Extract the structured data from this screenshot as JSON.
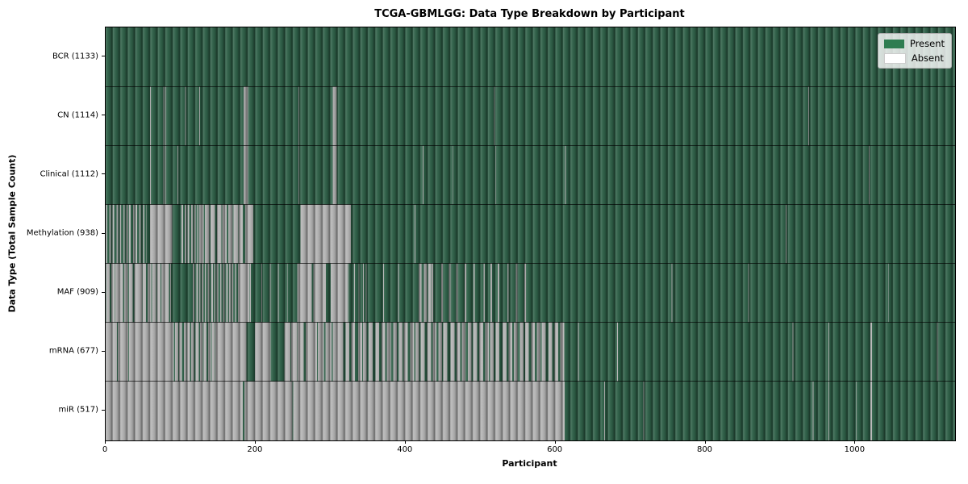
{
  "title": "TCGA-GBMLGG: Data Type Breakdown by Participant",
  "xlabel": "Participant",
  "ylabel": "Data Type (Total Sample Count)",
  "legend": {
    "present_label": "Present",
    "absent_label": "Absent"
  },
  "colors": {
    "present_fill": "#2e5f47",
    "present_legend": "#2e7d51",
    "absent_fill": "#b2b2b2",
    "absent_legend": "#ffffff"
  },
  "chart_data": {
    "type": "heatmap",
    "title": "TCGA-GBMLGG: Data Type Breakdown by Participant",
    "xlabel": "Participant",
    "ylabel": "Data Type (Total Sample Count)",
    "legend_entries": [
      "Present",
      "Absent"
    ],
    "legend_position": "upper right",
    "x_range": [
      0,
      1133
    ],
    "x_ticks": [
      0,
      200,
      400,
      600,
      800,
      1000
    ],
    "rows": [
      {
        "name": "BCR",
        "label": "BCR (1133)",
        "present_count": 1133,
        "segments": []
      },
      {
        "name": "CN",
        "label": "CN (1114)",
        "present_count": 1114,
        "segments": [
          {
            "type": "absent",
            "s": 59,
            "e": 60
          },
          {
            "type": "absent",
            "s": 77,
            "e": 78
          },
          {
            "type": "absent",
            "s": 79,
            "e": 80
          },
          {
            "type": "absent",
            "s": 106,
            "e": 107
          },
          {
            "type": "absent",
            "s": 125,
            "e": 126
          },
          {
            "type": "absent",
            "s": 184,
            "e": 190
          },
          {
            "type": "absent",
            "s": 257,
            "e": 258
          },
          {
            "type": "absent",
            "s": 303,
            "e": 308
          },
          {
            "type": "absent",
            "s": 518,
            "e": 519
          },
          {
            "type": "absent",
            "s": 937,
            "e": 938
          }
        ]
      },
      {
        "name": "Clinical",
        "label": "Clinical (1112)",
        "present_count": 1112,
        "segments": [
          {
            "type": "absent",
            "s": 59,
            "e": 60
          },
          {
            "type": "absent",
            "s": 77,
            "e": 78
          },
          {
            "type": "absent",
            "s": 79,
            "e": 80
          },
          {
            "type": "absent",
            "s": 96,
            "e": 97
          },
          {
            "type": "absent",
            "s": 184,
            "e": 190
          },
          {
            "type": "absent",
            "s": 257,
            "e": 258
          },
          {
            "type": "absent",
            "s": 303,
            "e": 308
          },
          {
            "type": "absent",
            "s": 423,
            "e": 424
          },
          {
            "type": "absent",
            "s": 463,
            "e": 464
          },
          {
            "type": "absent",
            "s": 520,
            "e": 521
          },
          {
            "type": "absent",
            "s": 613,
            "e": 614
          },
          {
            "type": "absent",
            "s": 1018,
            "e": 1019
          }
        ]
      },
      {
        "name": "Methylation",
        "label": "Methylation (938)",
        "present_count": 938,
        "segments": [
          {
            "type": "mixed",
            "s": 0,
            "e": 55,
            "absent_fraction": 0.45,
            "stripe_width": 2
          },
          {
            "type": "absent",
            "s": 59,
            "e": 89
          },
          {
            "type": "mixed",
            "s": 101,
            "e": 124,
            "absent_fraction": 0.5,
            "stripe_width": 2
          },
          {
            "type": "mixed",
            "s": 124,
            "e": 197,
            "absent_fraction": 0.8,
            "stripe_width": 6
          },
          {
            "type": "absent",
            "s": 260,
            "e": 327
          },
          {
            "type": "absent",
            "s": 412,
            "e": 413
          },
          {
            "type": "absent",
            "s": 907,
            "e": 908
          }
        ]
      },
      {
        "name": "MAF",
        "label": "MAF (909)",
        "present_count": 909,
        "segments": [
          {
            "type": "mixed",
            "s": 0,
            "e": 87,
            "absent_fraction": 0.82,
            "stripe_width": 5
          },
          {
            "type": "mixed",
            "s": 116,
            "e": 177,
            "absent_fraction": 0.5,
            "stripe_width": 2
          },
          {
            "type": "absent",
            "s": 177,
            "e": 192
          },
          {
            "type": "mixed",
            "s": 192,
            "e": 256,
            "absent_fraction": 0.08,
            "stripe_width": 1
          },
          {
            "type": "absent",
            "s": 256,
            "e": 275
          },
          {
            "type": "absent",
            "s": 277,
            "e": 294
          },
          {
            "type": "absent",
            "s": 300,
            "e": 323
          },
          {
            "type": "mixed",
            "s": 323,
            "e": 345,
            "absent_fraction": 0.15,
            "stripe_width": 1
          },
          {
            "type": "absent",
            "s": 347,
            "e": 348
          },
          {
            "type": "absent",
            "s": 370,
            "e": 371
          },
          {
            "type": "absent",
            "s": 390,
            "e": 391
          },
          {
            "type": "mixed",
            "s": 417,
            "e": 434,
            "absent_fraction": 0.65,
            "stripe_width": 4
          },
          {
            "type": "mixed",
            "s": 434,
            "e": 565,
            "absent_fraction": 0.18,
            "stripe_width": 2
          },
          {
            "type": "absent",
            "s": 755,
            "e": 756
          },
          {
            "type": "absent",
            "s": 857,
            "e": 858
          },
          {
            "type": "absent",
            "s": 1044,
            "e": 1045
          }
        ]
      },
      {
        "name": "mRNA",
        "label": "mRNA (677)",
        "present_count": 677,
        "segments": [
          {
            "type": "absent",
            "s": 0,
            "e": 15
          },
          {
            "type": "absent",
            "s": 16,
            "e": 30
          },
          {
            "type": "absent",
            "s": 31,
            "e": 87
          },
          {
            "type": "mixed",
            "s": 87,
            "e": 150,
            "absent_fraction": 0.75,
            "stripe_width": 4
          },
          {
            "type": "absent",
            "s": 150,
            "e": 188
          },
          {
            "type": "absent",
            "s": 199,
            "e": 220
          },
          {
            "type": "mixed",
            "s": 238,
            "e": 312,
            "absent_fraction": 0.9,
            "stripe_width": 8
          },
          {
            "type": "mixed",
            "s": 312,
            "e": 612,
            "absent_fraction": 0.65,
            "stripe_width": 5
          },
          {
            "type": "absent",
            "s": 630,
            "e": 631
          },
          {
            "type": "absent",
            "s": 682,
            "e": 683
          },
          {
            "type": "absent",
            "s": 916,
            "e": 917
          },
          {
            "type": "absent",
            "s": 964,
            "e": 965
          },
          {
            "type": "absent",
            "s": 1020,
            "e": 1022
          },
          {
            "type": "absent",
            "s": 1109,
            "e": 1110
          }
        ]
      },
      {
        "name": "miR",
        "label": "miR (517)",
        "present_count": 517,
        "segments": [
          {
            "type": "absent",
            "s": 0,
            "e": 183
          },
          {
            "type": "absent",
            "s": 185,
            "e": 249
          },
          {
            "type": "absent",
            "s": 250,
            "e": 612
          },
          {
            "type": "absent",
            "s": 665,
            "e": 666
          },
          {
            "type": "absent",
            "s": 717,
            "e": 718
          },
          {
            "type": "absent",
            "s": 943,
            "e": 944
          },
          {
            "type": "absent",
            "s": 964,
            "e": 965
          },
          {
            "type": "absent",
            "s": 1001,
            "e": 1002
          },
          {
            "type": "absent",
            "s": 1020,
            "e": 1022
          }
        ]
      }
    ]
  }
}
